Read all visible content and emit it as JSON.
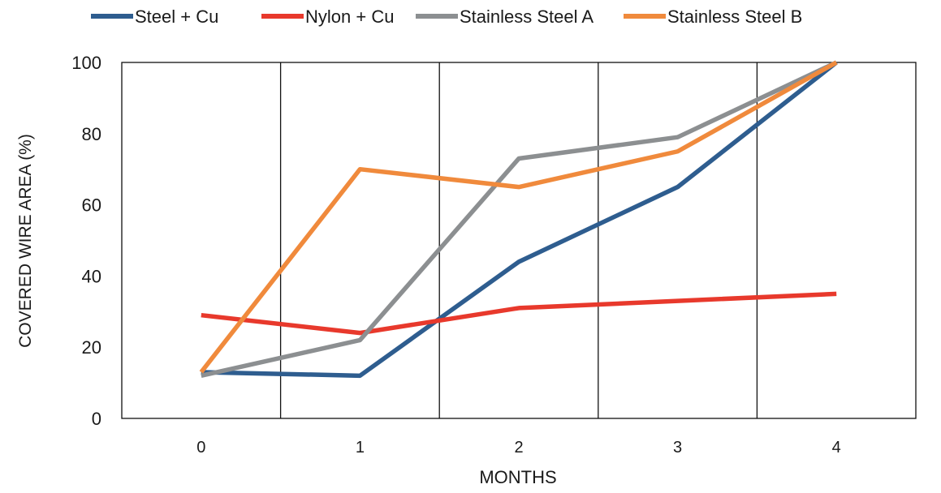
{
  "chart_data": {
    "type": "line",
    "title": "",
    "xlabel": "MONTHS",
    "ylabel": "COVERED WIRE AREA (%)",
    "x": [
      0,
      1,
      2,
      3,
      4
    ],
    "xlim": [
      -0.5,
      4.5
    ],
    "ylim": [
      0,
      100
    ],
    "yticks": [
      0,
      20,
      40,
      60,
      80,
      100
    ],
    "xticks": [
      0,
      1,
      2,
      3,
      4
    ],
    "grid": "vertical lines between months",
    "legend_position": "top",
    "series": [
      {
        "name": "Steel + Cu",
        "color": "#2E5D8F",
        "values": [
          13,
          12,
          44,
          65,
          100
        ]
      },
      {
        "name": "Nylon + Cu",
        "color": "#E8392C",
        "values": [
          29,
          24,
          31,
          33,
          35
        ]
      },
      {
        "name": "Stainless Steel A",
        "color": "#8C8F91",
        "values": [
          12,
          22,
          73,
          79,
          100
        ]
      },
      {
        "name": "Stainless Steel B",
        "color": "#F08A3C",
        "values": [
          13,
          70,
          65,
          75,
          100
        ]
      }
    ]
  }
}
